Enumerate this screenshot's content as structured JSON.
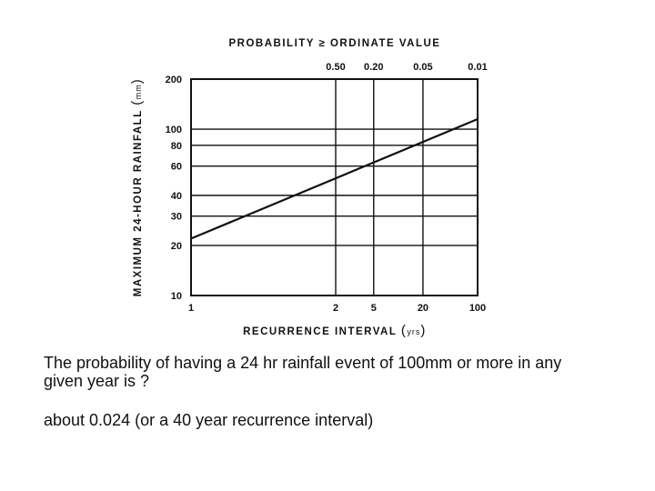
{
  "chart_data": {
    "type": "line",
    "title": "PROBABILITY ≥ ORDINATE VALUE",
    "xlabel": "RECURRENCE INTERVAL",
    "xlabel_unit": "yrs",
    "ylabel": "MAXIMUM 24-HOUR RAINFALL",
    "ylabel_unit": "mm",
    "x_scale": "gumbel-probability",
    "y_scale": "log",
    "ylim": [
      10,
      200
    ],
    "grid": true,
    "x_ticks": [
      {
        "value": 1,
        "label": "1"
      },
      {
        "value": 2,
        "label": "2"
      },
      {
        "value": 5,
        "label": "5"
      },
      {
        "value": 20,
        "label": "20"
      },
      {
        "value": 100,
        "label": "100"
      }
    ],
    "top_ticks": [
      {
        "value": 2,
        "label": "0.50"
      },
      {
        "value": 5,
        "label": "0.20"
      },
      {
        "value": 20,
        "label": "0.05"
      },
      {
        "value": 100,
        "label": "0.01"
      }
    ],
    "y_ticks": [
      {
        "value": 10,
        "label": "10"
      },
      {
        "value": 20,
        "label": "20"
      },
      {
        "value": 30,
        "label": "30"
      },
      {
        "value": 40,
        "label": "40"
      },
      {
        "value": 60,
        "label": "60"
      },
      {
        "value": 80,
        "label": "80"
      },
      {
        "value": 100,
        "label": "100"
      },
      {
        "value": 200,
        "label": "200"
      }
    ],
    "series": [
      {
        "points": [
          {
            "x": 1,
            "y": 22
          },
          {
            "x": 100,
            "y": 115
          }
        ]
      }
    ]
  },
  "text": {
    "question": "The probability of having a 24 hr rainfall event of 100mm or more in any given year is ?",
    "answer": "about 0.024 (or a 40 year recurrence interval)"
  }
}
